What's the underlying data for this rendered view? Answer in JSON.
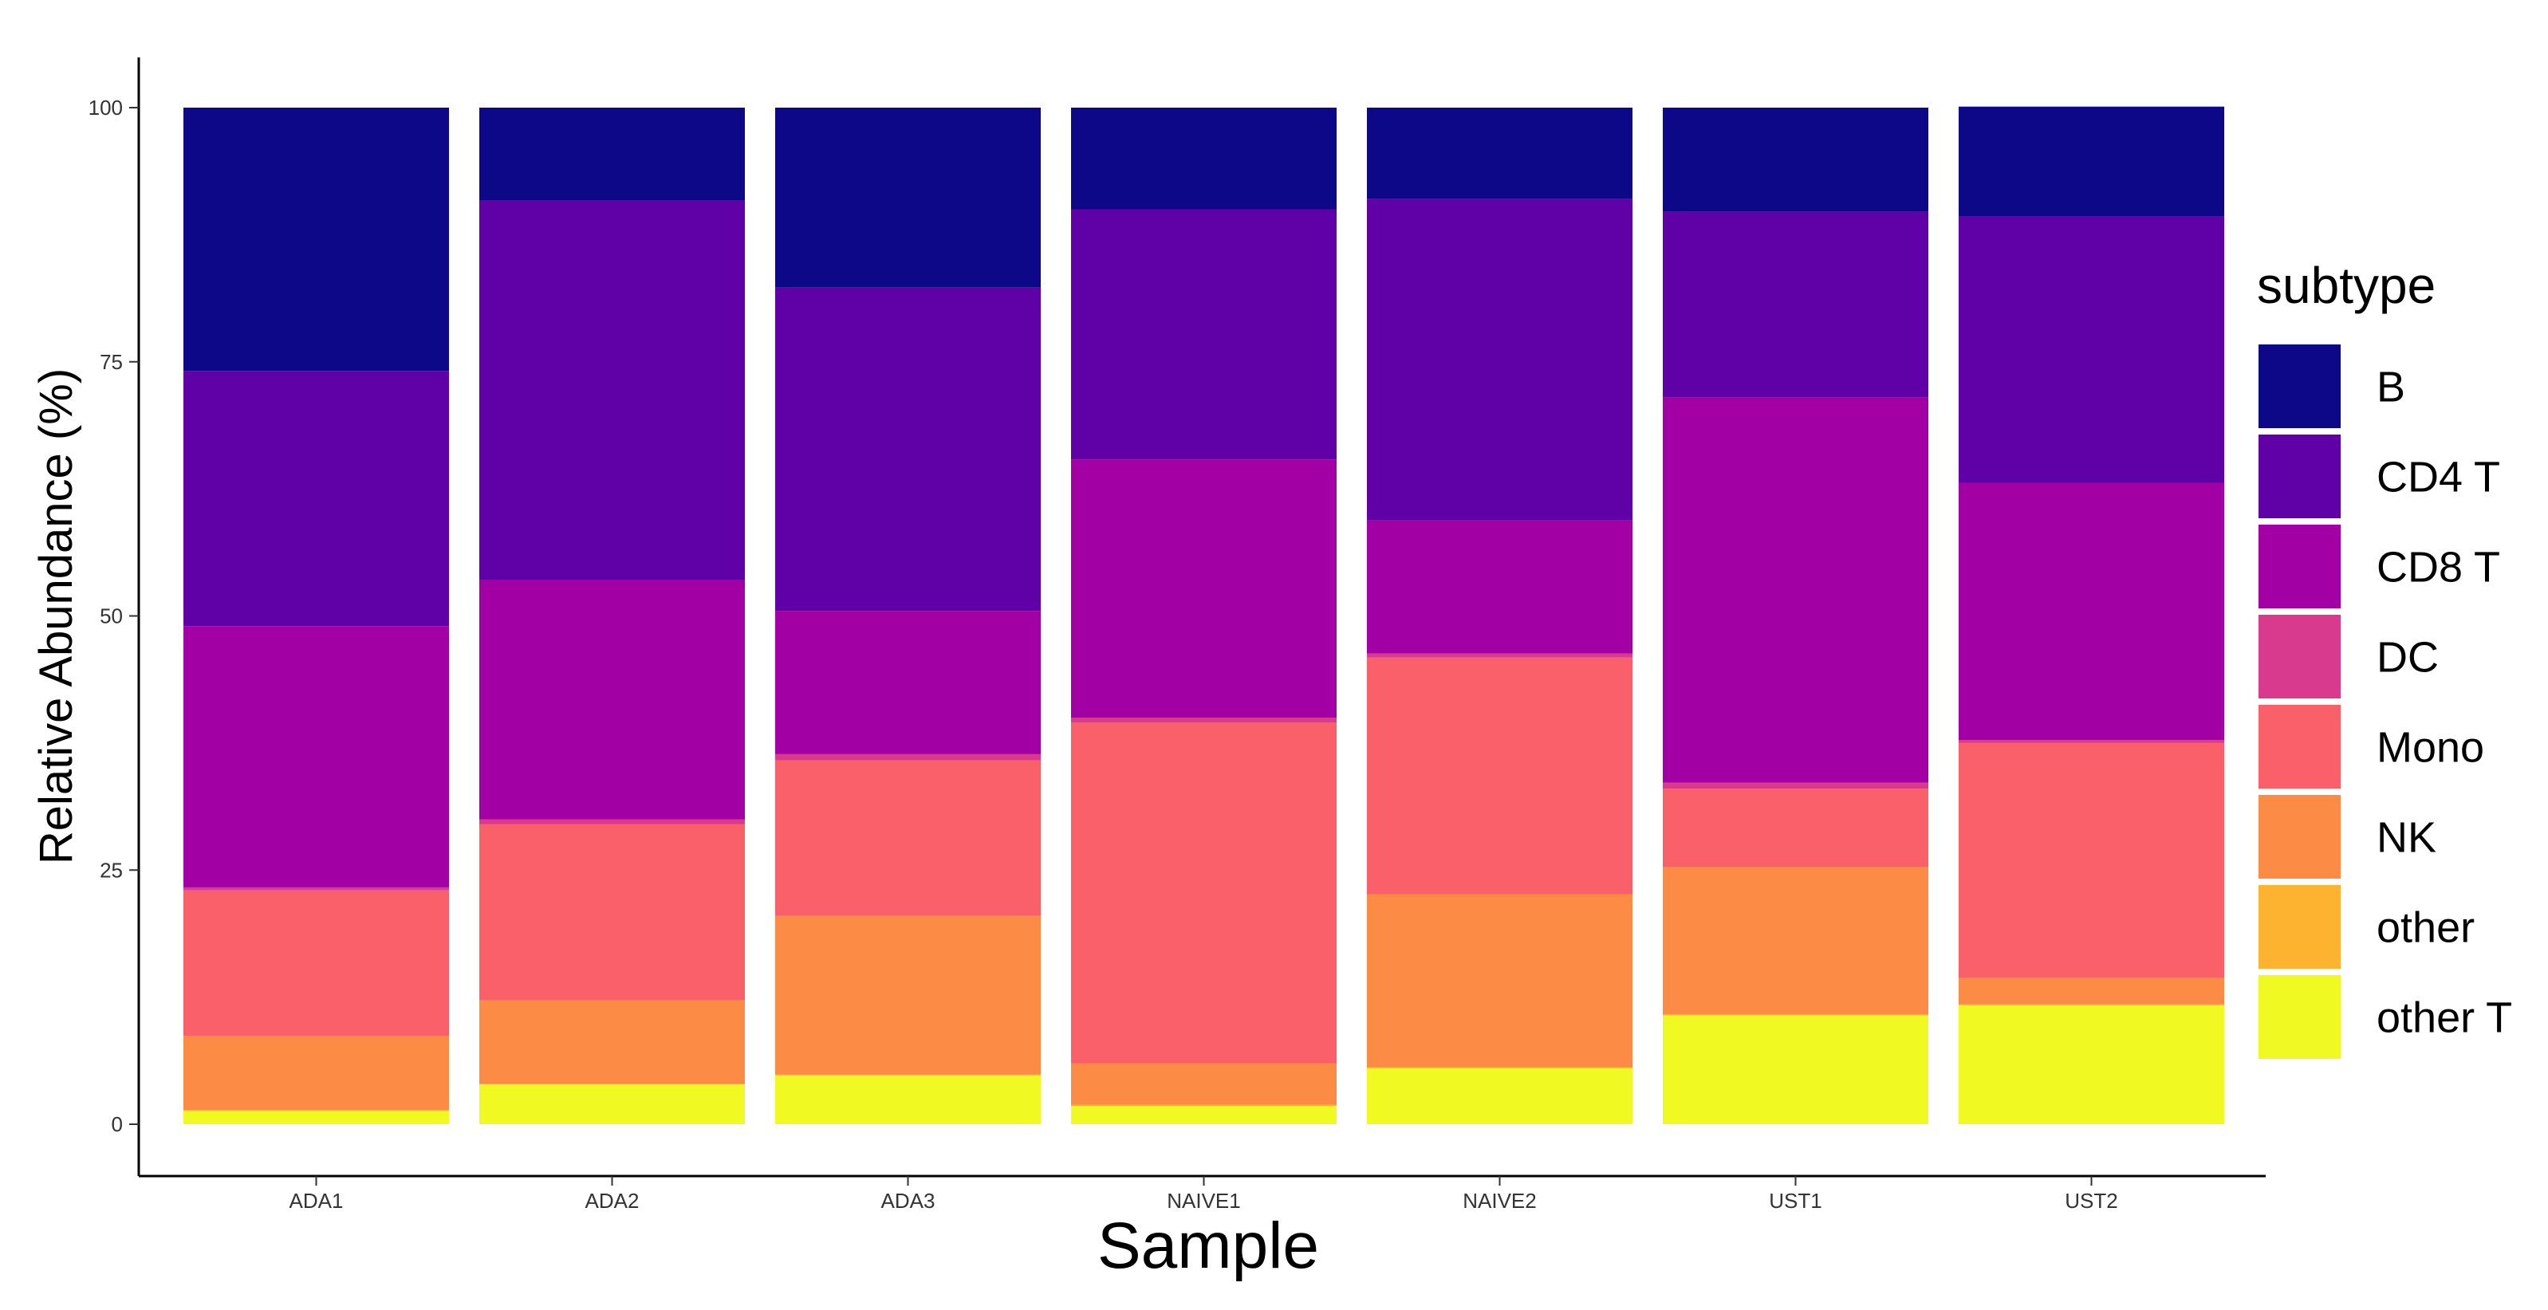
{
  "chart_data": {
    "type": "bar",
    "stacked": true,
    "percent": true,
    "categories": [
      "ADA1",
      "ADA2",
      "ADA3",
      "NAIVE1",
      "NAIVE2",
      "UST1",
      "UST2"
    ],
    "xlabel": "Sample",
    "ylabel": "Relative Abundance (%)",
    "ylim": [
      0,
      100
    ],
    "yticks": [
      0,
      25,
      50,
      75,
      100
    ],
    "grid": false,
    "legend": {
      "title": "subtype",
      "position": "right"
    },
    "series": [
      {
        "name": "other T",
        "color": "#F0F921",
        "values": [
          1.3,
          3.9,
          4.8,
          1.8,
          5.5,
          10.7,
          11.7
        ]
      },
      {
        "name": "other",
        "color": "#FDB32F",
        "values": [
          0.1,
          0.1,
          0.1,
          0.1,
          0.1,
          0.1,
          0.1
        ]
      },
      {
        "name": "NK",
        "color": "#FC8B46",
        "values": [
          7.3,
          8.2,
          15.6,
          4.1,
          17.0,
          14.5,
          2.6
        ]
      },
      {
        "name": "Mono",
        "color": "#F9606A",
        "values": [
          14.3,
          17.3,
          15.3,
          33.5,
          23.3,
          7.7,
          23.1
        ]
      },
      {
        "name": "DC",
        "color": "#D83A8D",
        "values": [
          0.3,
          0.5,
          0.6,
          0.5,
          0.4,
          0.6,
          0.3
        ]
      },
      {
        "name": "CD8 T",
        "color": "#A200A4",
        "values": [
          25.7,
          23.5,
          14.1,
          25.4,
          13.1,
          37.9,
          25.3
        ]
      },
      {
        "name": "CD4 T",
        "color": "#6000A7",
        "values": [
          25.1,
          37.4,
          31.8,
          24.6,
          31.6,
          18.3,
          26.2
        ]
      },
      {
        "name": "B",
        "color": "#0D0887",
        "values": [
          25.9,
          9.1,
          17.7,
          10.0,
          9.0,
          10.2,
          10.8
        ]
      }
    ]
  }
}
